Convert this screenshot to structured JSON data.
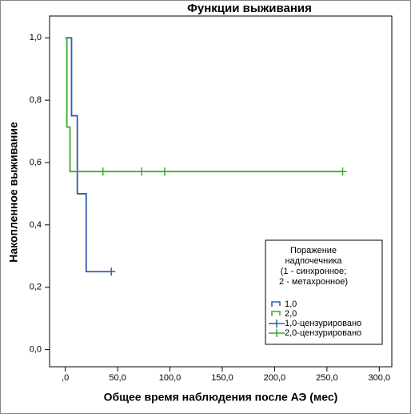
{
  "chart_data": {
    "type": "line",
    "step": "post",
    "title": "Функции выживания",
    "x_label": "Общее время наблюдения после АЭ (мес)",
    "y_label": "Накопленное выживание",
    "legend_title": [
      "Поражение",
      "надпочечника",
      "(1 - синхронное;",
      "2 - метахронное)"
    ],
    "legend_position": "lower right",
    "xlim": [
      -15,
      312
    ],
    "ylim": [
      -0.055,
      1.07
    ],
    "xticks": [
      {
        "value": 0,
        "label": ",0"
      },
      {
        "value": 50,
        "label": "50,0"
      },
      {
        "value": 100,
        "label": "100,0"
      },
      {
        "value": 150,
        "label": "150,0"
      },
      {
        "value": 200,
        "label": "200,0"
      },
      {
        "value": 250,
        "label": "250,0"
      },
      {
        "value": 300,
        "label": "300,0"
      }
    ],
    "yticks": [
      {
        "value": 0,
        "label": "0,0"
      },
      {
        "value": 0.2,
        "label": "0,2"
      },
      {
        "value": 0.4,
        "label": "0,4"
      },
      {
        "value": 0.6,
        "label": "0,6"
      },
      {
        "value": 0.8,
        "label": "0,8"
      },
      {
        "value": 1,
        "label": "1,0"
      }
    ],
    "series": [
      {
        "name": "1,0",
        "color": "#2f5ea8",
        "marker": "step",
        "x": [
          0,
          6,
          11.5,
          20,
          44
        ],
        "values": [
          1,
          0.75,
          0.5,
          0.25,
          0.25
        ]
      },
      {
        "name": "2,0",
        "color": "#3aa82a",
        "marker": "step",
        "x": [
          0,
          1.5,
          4.5,
          265
        ],
        "values": [
          1,
          0.714,
          0.571,
          0.571
        ]
      },
      {
        "name": "1,0-цензурировано",
        "color": "#2f5ea8",
        "marker": "+",
        "x": [
          44
        ],
        "values": [
          0.25
        ]
      },
      {
        "name": "2,0-цензурировано",
        "color": "#3aa82a",
        "marker": "+",
        "x": [
          36,
          73,
          95,
          265
        ],
        "values": [
          0.571,
          0.571,
          0.571,
          0.571
        ]
      }
    ]
  }
}
